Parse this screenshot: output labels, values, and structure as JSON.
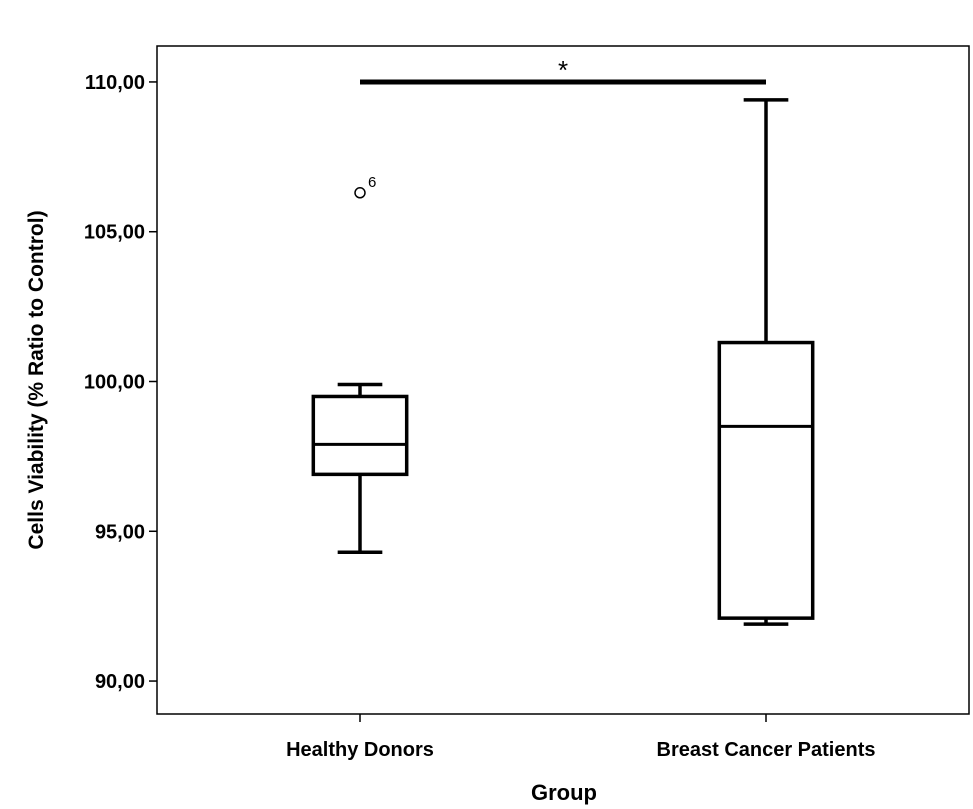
{
  "chart_data": {
    "type": "box",
    "title": "",
    "xlabel": "Group",
    "ylabel": "Cells Viability (% Ratio to Control)",
    "ylim": [
      88.9,
      111.2
    ],
    "yticks": [
      {
        "value": 90,
        "label": "90,00"
      },
      {
        "value": 95,
        "label": "95,00"
      },
      {
        "value": 100,
        "label": "100,00"
      },
      {
        "value": 105,
        "label": "105,00"
      },
      {
        "value": 110,
        "label": "110,00"
      }
    ],
    "categories": [
      "Healthy Donors",
      "Breast Cancer Patients"
    ],
    "boxes": [
      {
        "category": "Healthy Donors",
        "whisker_low": 94.3,
        "q1": 96.9,
        "median": 97.9,
        "q3": 99.5,
        "whisker_high": 99.9,
        "outliers": [
          {
            "value": 106.3,
            "label": "6"
          }
        ]
      },
      {
        "category": "Breast Cancer Patients",
        "whisker_low": 91.9,
        "q1": 92.1,
        "median": 98.5,
        "q3": 101.3,
        "whisker_high": 109.4,
        "outliers": []
      }
    ],
    "significance": {
      "from": "Healthy Donors",
      "to": "Breast Cancer Patients",
      "y": 110.0,
      "label": "*"
    },
    "grid": false,
    "legend": "none"
  }
}
